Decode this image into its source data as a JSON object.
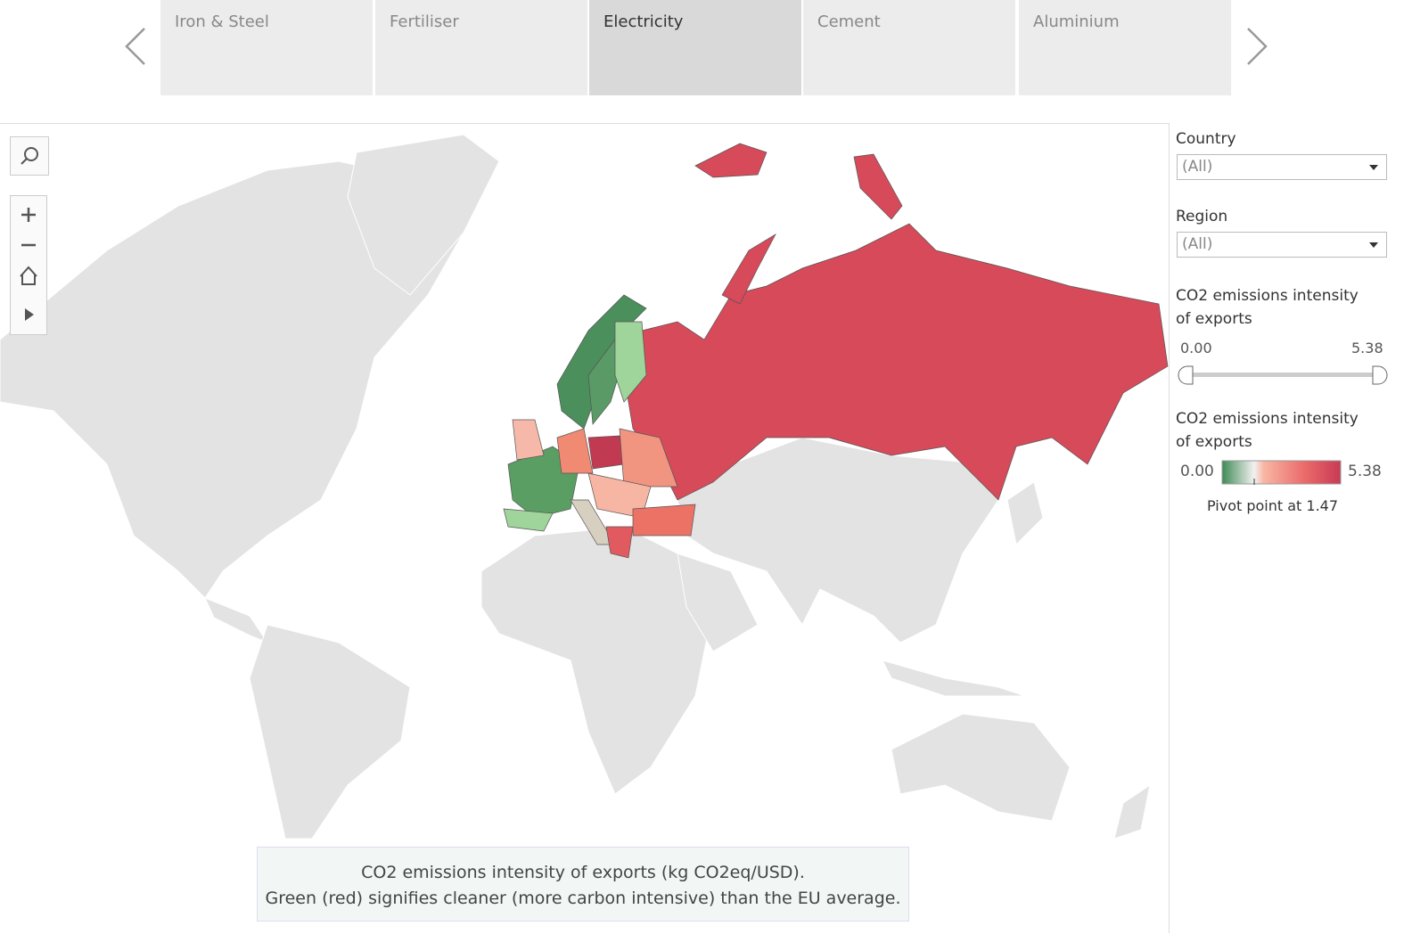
{
  "tabs": [
    "Iron & Steel",
    "Fertiliser",
    "Electricity",
    "Cement",
    "Aluminium"
  ],
  "active_tab": 2,
  "filters": [
    {
      "label": "Country",
      "value": "(All)"
    },
    {
      "label": "Region",
      "value": "(All)"
    }
  ],
  "slider": {
    "title": "CO2 emissions intensity of exports",
    "min": "0.00",
    "max": "5.38"
  },
  "color_legend": {
    "title": "CO2 emissions intensity of exports",
    "min": "0.00",
    "max": "5.38",
    "note": "Pivot point at 1.47"
  },
  "caption": [
    "CO2 emissions intensity of exports (kg CO2eq/USD).",
    "Green (red) signifies cleaner (more carbon intensive) than the EU average."
  ]
}
